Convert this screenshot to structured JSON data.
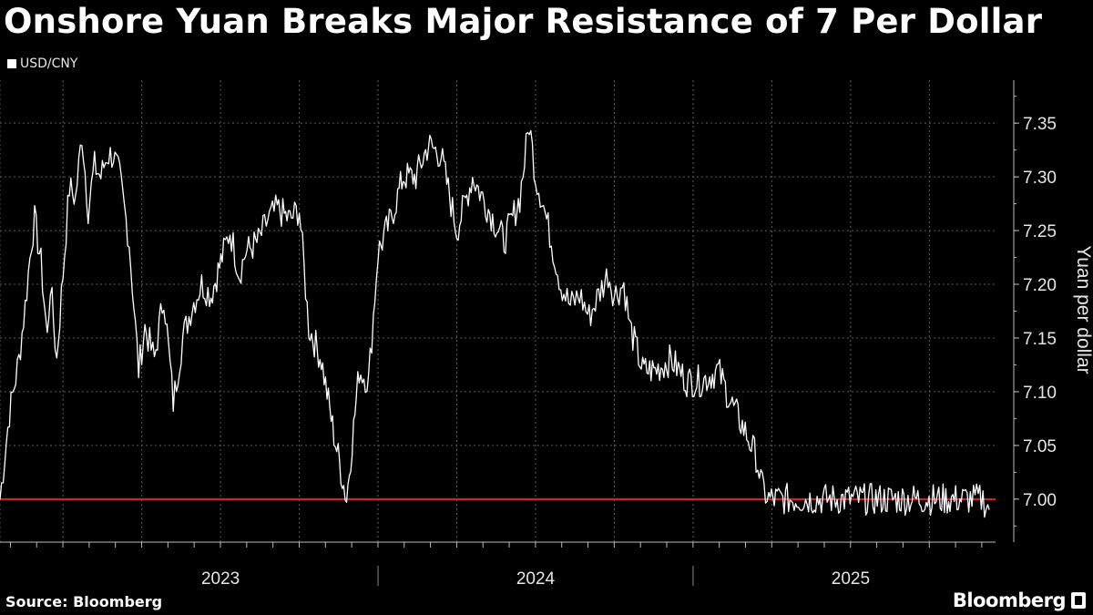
{
  "header": {
    "title": "Onshore Yuan Breaks Major Resistance of 7 Per Dollar"
  },
  "legend": {
    "label": "USD/CNY"
  },
  "footer": {
    "source": "Source: Bloomberg",
    "brand": "Bloomberg"
  },
  "chart_data": {
    "type": "line",
    "title": "Onshore Yuan Breaks Major Resistance of 7 Per Dollar",
    "series_name": "USD/CNY",
    "ylabel": "Yuan per dollar",
    "xlabel": "",
    "ylim": [
      6.96,
      7.39
    ],
    "xlim": [
      2022.8,
      2025.96
    ],
    "yticks": [
      7.0,
      7.05,
      7.1,
      7.15,
      7.2,
      7.25,
      7.3,
      7.35
    ],
    "ytick_labels": [
      "7.00",
      "7.05",
      "7.10",
      "7.15",
      "7.20",
      "7.25",
      "7.30",
      "7.35"
    ],
    "year_labels": [
      {
        "label": "2023",
        "x": 2023.5
      },
      {
        "label": "2024",
        "x": 2024.5
      },
      {
        "label": "2025",
        "x": 2025.5
      }
    ],
    "year_boundaries": [
      2024.0,
      2025.0
    ],
    "month_ticks_start": 2022.833,
    "reference_line": {
      "value": 7.0,
      "color": "#e0202e"
    },
    "colors": {
      "line": "#ffffff",
      "grid": "#5a5a5a",
      "axis": "#bbbbbb",
      "ref": "#e0202e"
    },
    "x": [
      2022.8,
      2022.83,
      2022.86,
      2022.88,
      2022.9,
      2022.91,
      2022.93,
      2022.95,
      2022.96,
      2022.98,
      2023.0,
      2023.02,
      2023.04,
      2023.06,
      2023.08,
      2023.1,
      2023.12,
      2023.14,
      2023.16,
      2023.18,
      2023.21,
      2023.24,
      2023.26,
      2023.29,
      2023.32,
      2023.35,
      2023.38,
      2023.41,
      2023.44,
      2023.47,
      2023.51,
      2023.53,
      2023.56,
      2023.58,
      2023.62,
      2023.65,
      2023.68,
      2023.72,
      2023.75,
      2023.78,
      2023.82,
      2023.86,
      2023.9,
      2023.94,
      2023.97,
      2024.0,
      2024.04,
      2024.08,
      2024.12,
      2024.16,
      2024.2,
      2024.25,
      2024.3,
      2024.35,
      2024.4,
      2024.45,
      2024.48,
      2024.5,
      2024.52,
      2024.55,
      2024.58,
      2024.61,
      2024.64,
      2024.67,
      2024.7,
      2024.73,
      2024.75,
      2024.78,
      2024.8,
      2024.84,
      2024.88,
      2024.93,
      2024.98,
      2025.03,
      2025.08,
      2025.12,
      2025.17,
      2025.2,
      2025.22,
      2025.24,
      2025.28,
      2025.33,
      2025.38,
      2025.43,
      2025.48,
      2025.53,
      2025.58,
      2025.62,
      2025.66,
      2025.7,
      2025.74,
      2025.78,
      2025.82,
      2025.86,
      2025.88,
      2025.9,
      2025.92,
      2025.94
    ],
    "values": [
      7.0,
      7.08,
      7.13,
      7.18,
      7.24,
      7.26,
      7.22,
      7.15,
      7.2,
      7.13,
      7.21,
      7.29,
      7.28,
      7.34,
      7.27,
      7.31,
      7.3,
      7.32,
      7.32,
      7.3,
      7.24,
      7.12,
      7.16,
      7.13,
      7.19,
      7.09,
      7.15,
      7.18,
      7.2,
      7.19,
      7.23,
      7.25,
      7.21,
      7.23,
      7.24,
      7.26,
      7.27,
      7.26,
      7.27,
      7.16,
      7.13,
      7.06,
      7.0,
      7.12,
      7.11,
      7.23,
      7.26,
      7.3,
      7.3,
      7.33,
      7.32,
      7.25,
      7.3,
      7.27,
      7.24,
      7.28,
      7.35,
      7.3,
      7.28,
      7.24,
      7.2,
      7.18,
      7.19,
      7.17,
      7.19,
      7.21,
      7.19,
      7.2,
      7.16,
      7.12,
      7.12,
      7.13,
      7.11,
      7.11,
      7.12,
      7.09,
      7.06,
      7.04,
      7.01,
      7.0,
      7.0,
      7.0,
      7.0,
      7.0,
      7.0,
      7.0,
      7.0,
      7.0,
      7.0,
      7.0,
      7.0,
      7.0,
      7.0,
      7.0,
      7.0,
      7.0,
      7.0,
      6.99
    ]
  }
}
